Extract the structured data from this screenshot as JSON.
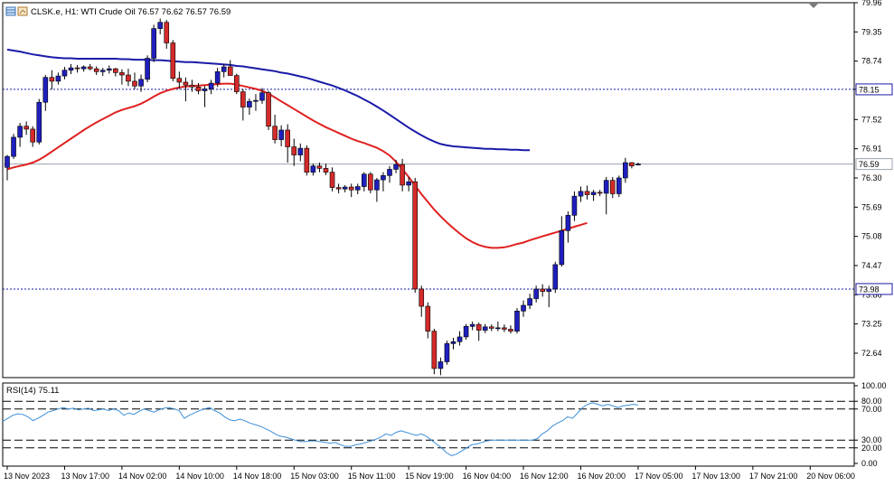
{
  "header": {
    "symbol_text": "CLSK.e, H1:  WTI Crude Oil  76.57 76.62 76.57 76.59"
  },
  "colors": {
    "bull": "#1f1fbf",
    "bear": "#d42a2a",
    "ma_fast": "#e02020",
    "ma_slow": "#1a1aa8",
    "rsi": "#3c8fd8",
    "level": "#1a1aa8",
    "grid_dash": "#000000"
  },
  "chart_data": [
    {
      "type": "candlestick",
      "title": "CLSK.e, H1:  WTI Crude Oil  76.57 76.62 76.57 76.59",
      "ylim": [
        72.13,
        79.96
      ],
      "y_ticks": [
        "79.96",
        "79.35",
        "78.74",
        "78.15",
        "77.52",
        "76.91",
        "76.30",
        "75.69",
        "75.08",
        "74.47",
        "73.86",
        "73.25",
        "72.64"
      ],
      "x_ticks": [
        "13 Nov 2023",
        "13 Nov 17:00",
        "14 Nov 02:00",
        "14 Nov 10:00",
        "14 Nov 18:00",
        "15 Nov 03:00",
        "15 Nov 11:00",
        "15 Nov 19:00",
        "16 Nov 04:00",
        "16 Nov 12:00",
        "16 Nov 20:00",
        "17 Nov 05:00",
        "17 Nov 13:00",
        "17 Nov 21:00",
        "20 Nov 06:00"
      ],
      "x_tick_index": [
        0,
        9,
        18,
        27,
        36,
        45,
        54,
        63,
        72,
        81,
        90,
        99,
        108,
        117,
        126
      ],
      "candles": [
        [
          76.52,
          76.78,
          76.25,
          76.75
        ],
        [
          76.75,
          77.22,
          76.7,
          77.15
        ],
        [
          77.15,
          77.45,
          76.95,
          77.38
        ],
        [
          77.38,
          77.48,
          77.2,
          77.32
        ],
        [
          77.32,
          77.38,
          76.95,
          77.05
        ],
        [
          77.05,
          77.95,
          77.0,
          77.88
        ],
        [
          77.88,
          78.45,
          77.7,
          78.4
        ],
        [
          78.4,
          78.55,
          78.15,
          78.32
        ],
        [
          78.32,
          78.5,
          78.25,
          78.43
        ],
        [
          78.43,
          78.62,
          78.36,
          78.55
        ],
        [
          78.55,
          78.68,
          78.47,
          78.6
        ],
        [
          78.6,
          78.66,
          78.5,
          78.58
        ],
        [
          78.58,
          78.65,
          78.52,
          78.62
        ],
        [
          78.62,
          78.68,
          78.55,
          78.58
        ],
        [
          78.58,
          78.63,
          78.45,
          78.52
        ],
        [
          78.52,
          78.6,
          78.43,
          78.55
        ],
        [
          78.55,
          78.65,
          78.48,
          78.58
        ],
        [
          78.58,
          78.6,
          78.42,
          78.5
        ],
        [
          78.5,
          78.57,
          78.25,
          78.45
        ],
        [
          78.45,
          78.58,
          78.22,
          78.32
        ],
        [
          78.32,
          78.5,
          78.15,
          78.22
        ],
        [
          78.22,
          78.46,
          78.1,
          78.36
        ],
        [
          78.36,
          78.86,
          78.3,
          78.8
        ],
        [
          78.8,
          79.5,
          78.72,
          79.42
        ],
        [
          79.42,
          79.63,
          79.3,
          79.55
        ],
        [
          79.55,
          79.6,
          79.0,
          79.12
        ],
        [
          79.12,
          79.18,
          78.32,
          78.38
        ],
        [
          78.38,
          78.52,
          78.16,
          78.3
        ],
        [
          78.3,
          78.4,
          77.9,
          78.24
        ],
        [
          78.24,
          78.35,
          78.1,
          78.2
        ],
        [
          78.2,
          78.28,
          78.05,
          78.12
        ],
        [
          78.12,
          78.22,
          77.78,
          78.16
        ],
        [
          78.16,
          78.35,
          78.05,
          78.28
        ],
        [
          78.28,
          78.6,
          78.2,
          78.52
        ],
        [
          78.52,
          78.68,
          78.4,
          78.62
        ],
        [
          78.62,
          78.76,
          78.48,
          78.44
        ],
        [
          78.44,
          78.48,
          78.05,
          78.1
        ],
        [
          78.1,
          78.16,
          77.5,
          77.78
        ],
        [
          77.78,
          77.96,
          77.62,
          77.9
        ],
        [
          77.9,
          78.05,
          77.7,
          77.92
        ],
        [
          77.92,
          78.18,
          77.85,
          78.08
        ],
        [
          78.08,
          78.12,
          77.3,
          77.38
        ],
        [
          77.38,
          77.62,
          77.02,
          77.1
        ],
        [
          77.1,
          77.4,
          76.96,
          77.3
        ],
        [
          77.3,
          77.42,
          76.62,
          76.95
        ],
        [
          76.95,
          77.12,
          76.55,
          76.78
        ],
        [
          76.78,
          77.02,
          76.65,
          76.92
        ],
        [
          76.92,
          76.98,
          76.35,
          76.42
        ],
        [
          76.42,
          76.6,
          76.35,
          76.55
        ],
        [
          76.55,
          76.62,
          76.42,
          76.5
        ],
        [
          76.5,
          76.6,
          76.36,
          76.42
        ],
        [
          76.42,
          76.52,
          76.02,
          76.1
        ],
        [
          76.1,
          76.18,
          75.98,
          76.07
        ],
        [
          76.07,
          76.15,
          76.0,
          76.11
        ],
        [
          76.11,
          76.18,
          75.9,
          76.05
        ],
        [
          76.05,
          76.18,
          75.96,
          76.12
        ],
        [
          76.12,
          76.42,
          76.02,
          76.38
        ],
        [
          76.38,
          76.42,
          75.98,
          76.05
        ],
        [
          76.05,
          76.3,
          75.8,
          76.26
        ],
        [
          76.26,
          76.42,
          76.02,
          76.35
        ],
        [
          76.35,
          76.55,
          76.2,
          76.48
        ],
        [
          76.48,
          76.68,
          76.4,
          76.58
        ],
        [
          76.58,
          76.7,
          76.02,
          76.15
        ],
        [
          76.15,
          76.32,
          76.02,
          76.22
        ],
        [
          76.22,
          76.3,
          73.9,
          73.98
        ],
        [
          73.98,
          74.05,
          73.4,
          73.62
        ],
        [
          73.62,
          73.7,
          72.95,
          73.1
        ],
        [
          73.1,
          73.15,
          72.2,
          72.32
        ],
        [
          72.32,
          72.55,
          72.18,
          72.46
        ],
        [
          72.46,
          72.9,
          72.4,
          72.84
        ],
        [
          72.84,
          72.96,
          72.72,
          72.88
        ],
        [
          72.88,
          73.1,
          72.8,
          72.98
        ],
        [
          72.98,
          73.25,
          72.92,
          73.2
        ],
        [
          73.2,
          73.3,
          73.12,
          73.24
        ],
        [
          73.24,
          73.28,
          72.9,
          73.12
        ],
        [
          73.12,
          73.25,
          73.06,
          73.19
        ],
        [
          73.19,
          73.24,
          73.1,
          73.16
        ],
        [
          73.16,
          73.3,
          73.1,
          73.17
        ],
        [
          73.17,
          73.24,
          73.08,
          73.14
        ],
        [
          73.14,
          73.22,
          73.05,
          73.1
        ],
        [
          73.1,
          73.58,
          73.05,
          73.52
        ],
        [
          73.52,
          73.74,
          73.4,
          73.64
        ],
        [
          73.64,
          73.88,
          73.56,
          73.78
        ],
        [
          73.78,
          74.05,
          73.7,
          73.98
        ],
        [
          73.98,
          74.08,
          73.82,
          73.93
        ],
        [
          73.93,
          74.05,
          73.6,
          73.98
        ],
        [
          73.98,
          74.55,
          73.9,
          74.49
        ],
        [
          74.49,
          75.5,
          74.45,
          75.2
        ],
        [
          75.2,
          75.6,
          74.95,
          75.52
        ],
        [
          75.52,
          76.02,
          75.4,
          75.92
        ],
        [
          75.92,
          76.12,
          75.8,
          76.02
        ],
        [
          76.02,
          76.14,
          75.85,
          75.95
        ],
        [
          75.95,
          76.05,
          75.82,
          76.0
        ],
        [
          76.0,
          76.05,
          75.92,
          75.98
        ],
        [
          75.98,
          76.32,
          75.54,
          76.25
        ],
        [
          76.25,
          76.32,
          75.88,
          75.97
        ],
        [
          75.97,
          76.35,
          75.9,
          76.3
        ],
        [
          76.3,
          76.72,
          76.2,
          76.62
        ],
        [
          76.62,
          76.63,
          76.5,
          76.55
        ],
        [
          76.57,
          76.62,
          76.57,
          76.59
        ]
      ],
      "series": [
        {
          "name": "",
          "color_key": "ma_fast",
          "y": [
            76.48,
            76.52,
            76.55,
            76.58,
            76.62,
            76.68,
            76.76,
            76.85,
            76.94,
            77.03,
            77.12,
            77.21,
            77.3,
            77.38,
            77.46,
            77.53,
            77.6,
            77.67,
            77.72,
            77.76,
            77.8,
            77.85,
            77.92,
            78.0,
            78.07,
            78.12,
            78.16,
            78.19,
            78.21,
            78.22,
            78.23,
            78.24,
            78.25,
            78.26,
            78.27,
            78.27,
            78.25,
            78.22,
            78.19,
            78.16,
            78.12,
            78.06,
            77.98,
            77.9,
            77.82,
            77.74,
            77.66,
            77.58,
            77.5,
            77.43,
            77.36,
            77.3,
            77.24,
            77.18,
            77.12,
            77.07,
            77.03,
            76.98,
            76.93,
            76.86,
            76.77,
            76.64,
            76.48,
            76.32,
            76.14,
            75.96,
            75.8,
            75.64,
            75.5,
            75.37,
            75.25,
            75.14,
            75.04,
            74.96,
            74.9,
            74.86,
            74.84,
            74.84,
            74.85,
            74.88,
            74.92,
            74.95,
            75.0,
            75.04,
            75.08,
            75.12,
            75.16,
            75.2,
            75.24,
            75.28,
            75.32,
            75.36
          ]
        },
        {
          "name": "",
          "color_key": "ma_slow",
          "y": [
            78.98,
            78.96,
            78.94,
            78.91,
            78.88,
            78.86,
            78.84,
            78.82,
            78.81,
            78.8,
            78.8,
            78.79,
            78.79,
            78.79,
            78.79,
            78.79,
            78.79,
            78.79,
            78.78,
            78.78,
            78.77,
            78.77,
            78.77,
            78.76,
            78.76,
            78.75,
            78.74,
            78.73,
            78.72,
            78.72,
            78.71,
            78.7,
            78.69,
            78.68,
            78.67,
            78.66,
            78.64,
            78.63,
            78.61,
            78.59,
            78.57,
            78.55,
            78.53,
            78.5,
            78.48,
            78.45,
            78.42,
            78.39,
            78.35,
            78.31,
            78.27,
            78.23,
            78.18,
            78.13,
            78.07,
            78.01,
            77.94,
            77.87,
            77.79,
            77.71,
            77.62,
            77.53,
            77.44,
            77.35,
            77.27,
            77.19,
            77.12,
            77.06,
            77.01,
            76.98,
            76.96,
            76.95,
            76.94,
            76.93,
            76.92,
            76.91,
            76.91,
            76.9,
            76.9,
            76.89,
            76.89,
            76.88,
            76.88
          ]
        }
      ],
      "levels": [
        {
          "value": 78.15,
          "label": "78.15"
        },
        {
          "value": 73.98,
          "label": "73.98"
        }
      ],
      "current_price": {
        "value": 76.59,
        "label": "76.59"
      }
    },
    {
      "type": "line",
      "title": "RSI(14) 75.11",
      "ylim": [
        0,
        100
      ],
      "y_ticks": [
        "100.00",
        "80.00",
        "70.00",
        "30.00",
        "20.00",
        "0.00"
      ],
      "levels": [
        80,
        70,
        30,
        20
      ],
      "series": [
        {
          "name": "",
          "y": [
            54,
            58,
            62,
            64,
            63,
            60,
            55,
            58,
            62,
            66,
            68,
            70,
            72,
            70,
            71,
            69,
            70,
            71,
            68,
            69,
            70,
            68,
            70,
            68,
            62,
            65,
            63,
            67,
            70,
            68,
            66,
            69,
            71,
            72,
            70,
            68,
            58,
            62,
            65,
            68,
            70,
            72,
            68,
            65,
            60,
            56,
            55,
            57,
            55,
            52,
            50,
            48,
            45,
            42,
            38,
            35,
            34,
            32,
            30,
            28,
            28,
            29,
            29,
            28,
            27,
            26,
            27,
            24,
            22,
            22,
            24,
            25,
            27,
            29,
            31,
            34,
            38,
            36,
            40,
            42,
            40,
            38,
            36,
            38,
            35,
            30,
            25,
            20,
            14,
            10,
            12,
            16,
            20,
            24,
            25,
            27,
            29,
            30,
            30,
            30,
            30,
            30,
            30,
            30,
            30,
            30,
            32,
            38,
            42,
            48,
            52,
            55,
            60,
            58,
            65,
            72,
            76,
            78,
            76,
            74,
            76,
            74,
            72,
            74,
            75,
            76,
            75.11
          ]
        }
      ]
    }
  ]
}
